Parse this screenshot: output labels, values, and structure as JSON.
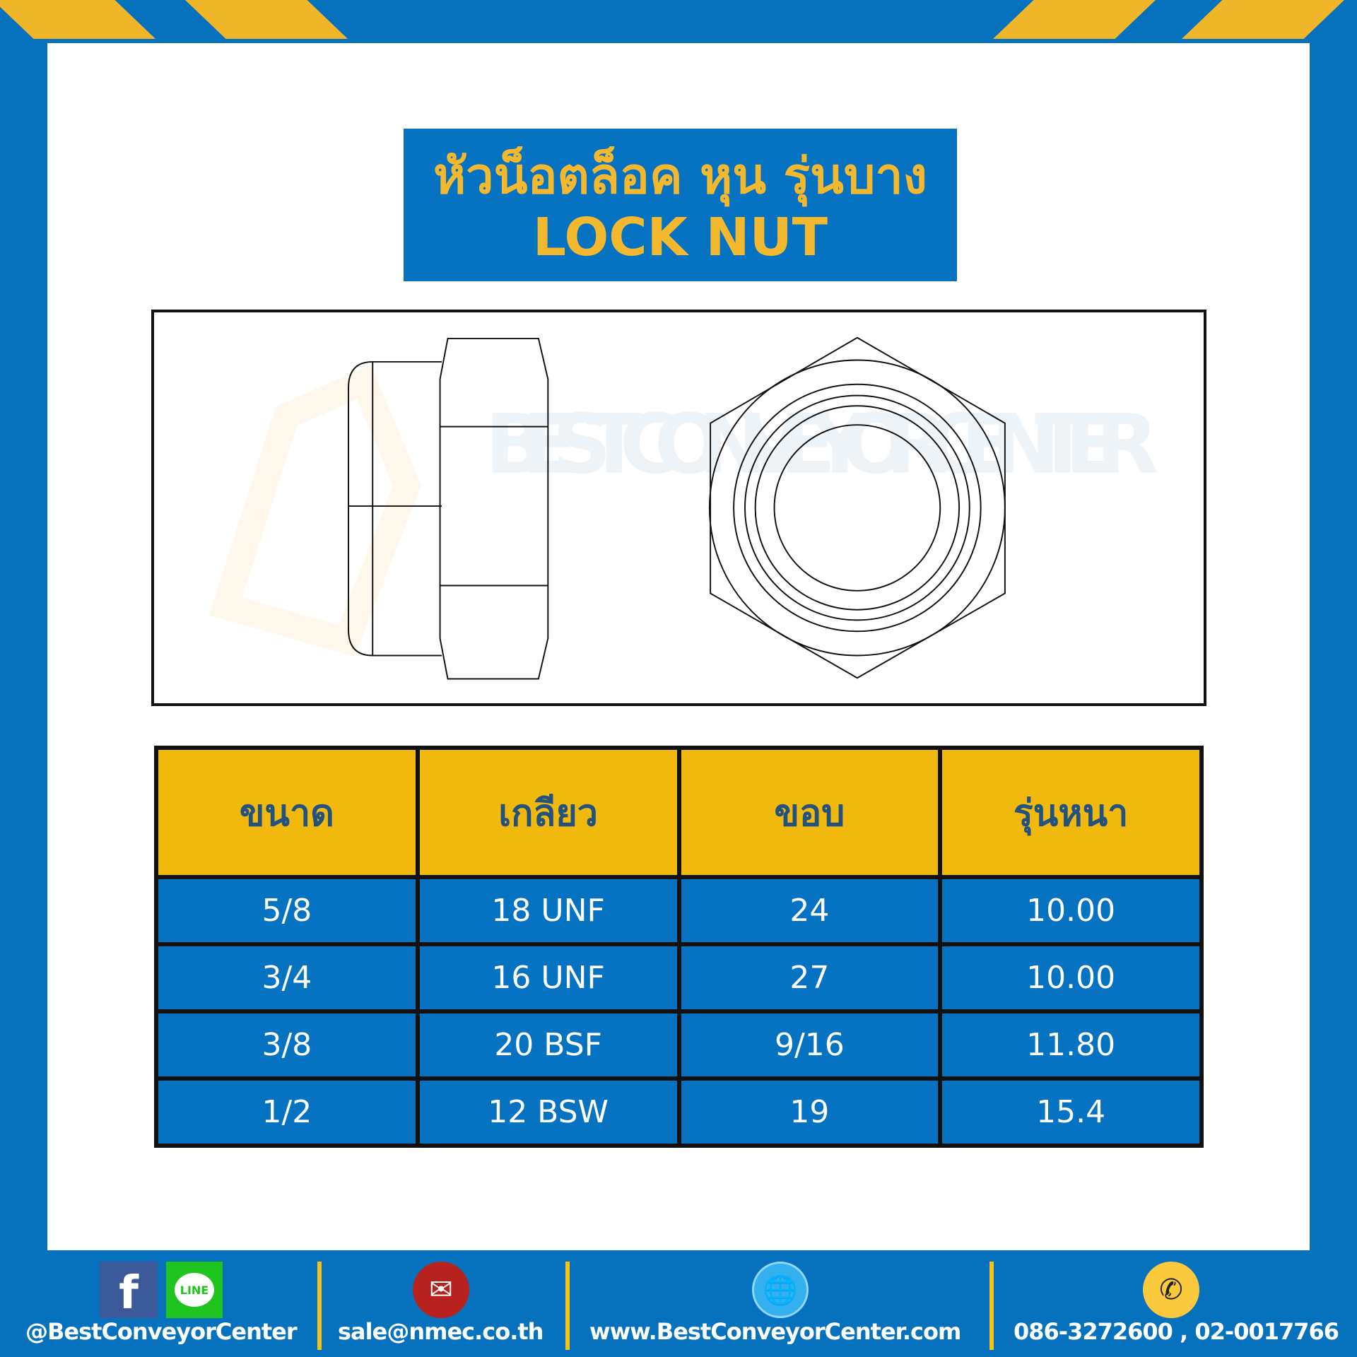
{
  "title": {
    "thai": "หัวน็อตล็อค หุน รุ่นบาง",
    "english": "LOCK NUT"
  },
  "watermark": "BEST CONVEYOR CENTER",
  "table": {
    "headers": [
      "ขนาด",
      "เกลียว",
      "ขอบ",
      "รุ่นหนา"
    ],
    "rows": [
      [
        "5/8",
        "18 UNF",
        "24",
        "10.00"
      ],
      [
        "3/4",
        "16 UNF",
        "27",
        "10.00"
      ],
      [
        "3/8",
        "20 BSF",
        "9/16",
        "11.80"
      ],
      [
        "1/2",
        "12 BSW",
        "19",
        "15.4"
      ]
    ]
  },
  "footer": {
    "social": "@BestConveyorCenter",
    "email": "sale@nmec.co.th",
    "website": "www.BestConveyorCenter.com",
    "phone": "086-3272600 , 02-0017766",
    "line_label": "LINE",
    "icons": [
      "facebook-icon",
      "line-icon",
      "email-icon",
      "globe-icon",
      "phone-icon"
    ]
  },
  "colors": {
    "blue": "#0672c2",
    "yellow": "#f1b80d",
    "header_text": "#23527e"
  }
}
